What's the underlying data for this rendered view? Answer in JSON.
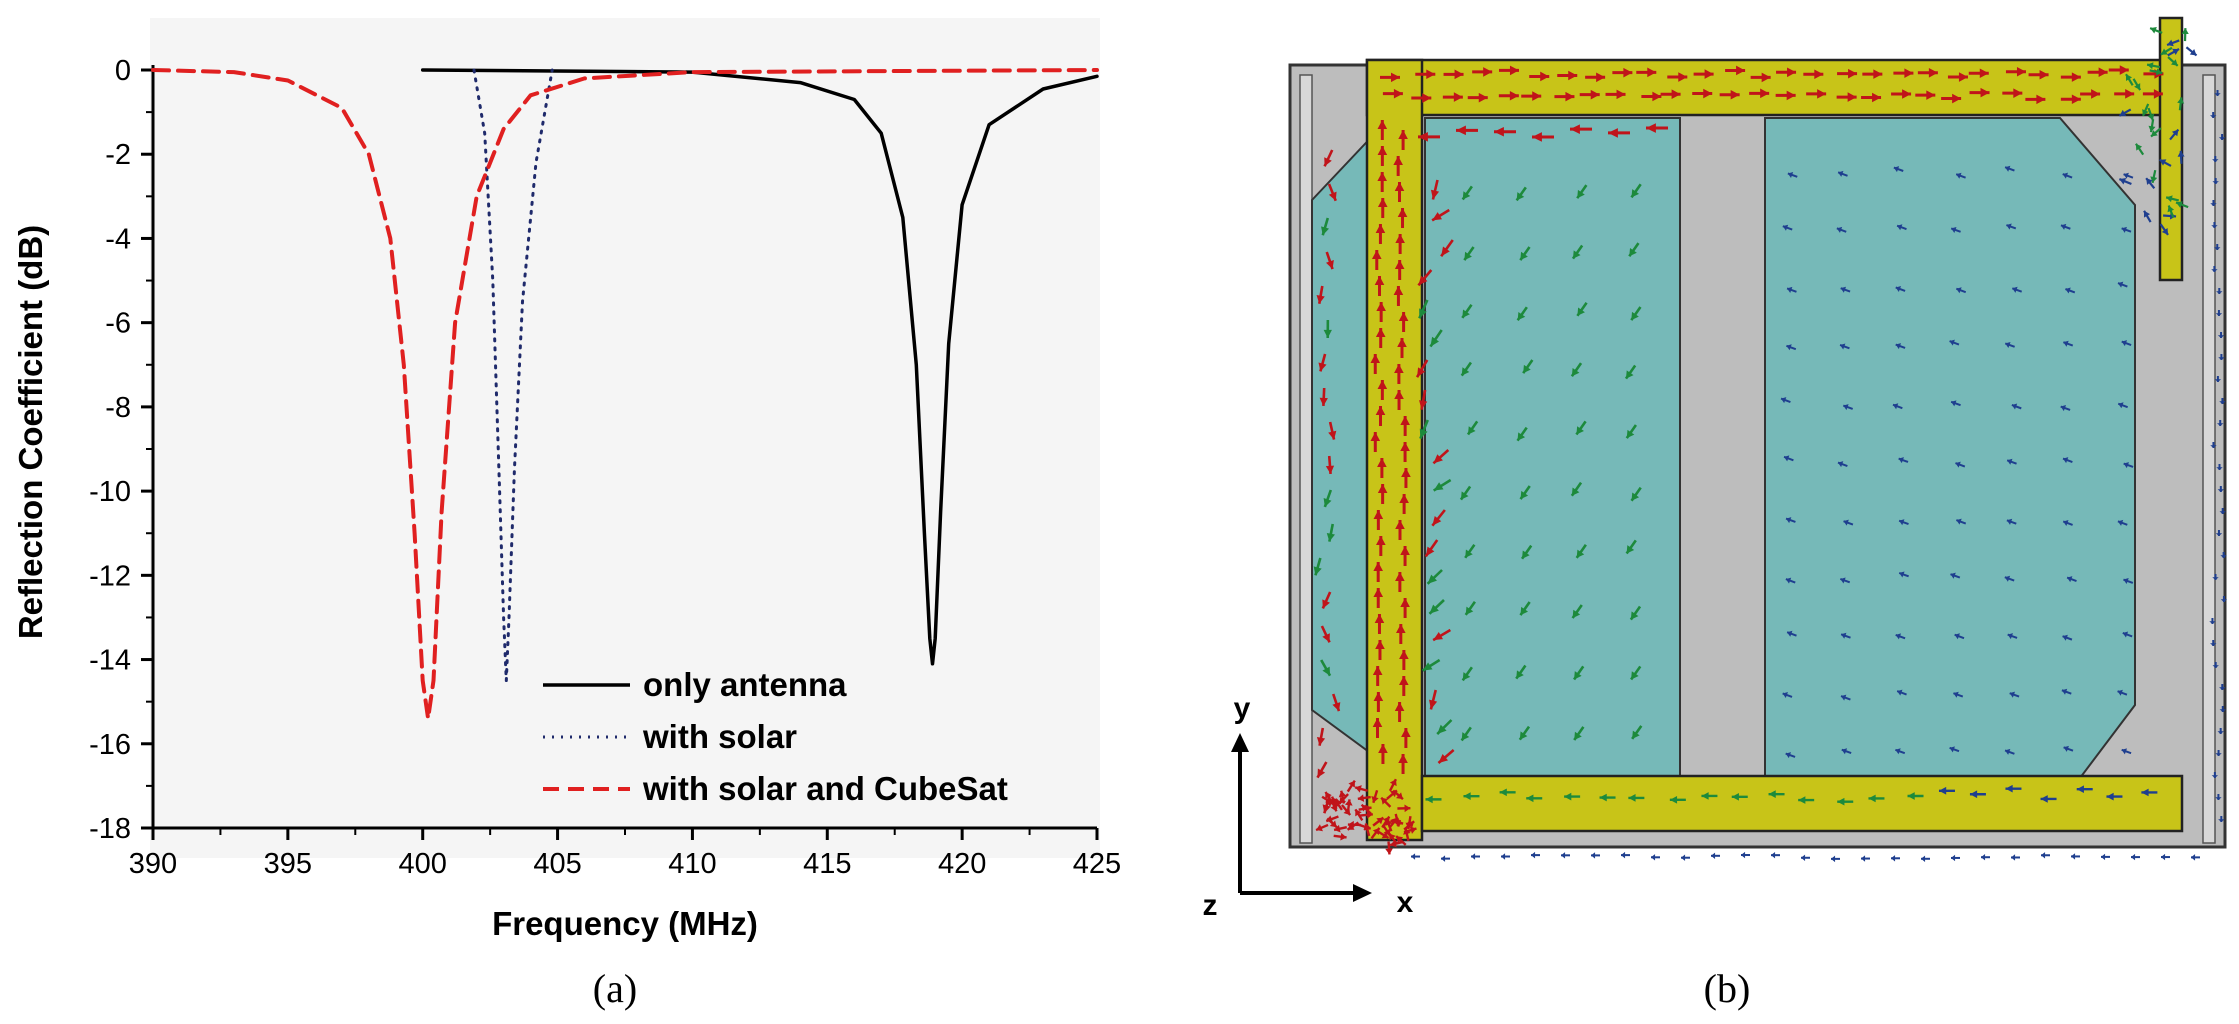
{
  "chart_data": {
    "type": "line",
    "xlabel": "Frequency (MHz)",
    "ylabel": "Reflection Coefficient (dB)",
    "xlim": [
      390,
      425
    ],
    "ylim": [
      -18,
      0
    ],
    "xticks": [
      "390",
      "395",
      "400",
      "405",
      "410",
      "415",
      "420",
      "425"
    ],
    "yticks": [
      "0",
      "-2",
      "-4",
      "-6",
      "-8",
      "-10",
      "-12",
      "-14",
      "-16",
      "-18"
    ],
    "grid": false,
    "legend_position": "bottom-right",
    "series": [
      {
        "name": "only antenna",
        "style": "solid",
        "color": "#000000",
        "x": [
          400,
          410,
          414,
          416,
          417,
          417.8,
          418.3,
          418.6,
          418.8,
          418.9,
          419.0,
          419.2,
          419.5,
          420,
          421,
          423,
          425
        ],
        "y": [
          0,
          -0.05,
          -0.3,
          -0.7,
          -1.5,
          -3.5,
          -7,
          -11,
          -13.5,
          -14.1,
          -13.5,
          -10.5,
          -6.5,
          -3.2,
          -1.3,
          -0.45,
          -0.15
        ]
      },
      {
        "name": "with solar",
        "style": "dotted",
        "color": "#1f2a6b",
        "x": [
          401.9,
          402.3,
          402.6,
          402.85,
          403.0,
          403.1,
          403.2,
          403.4,
          403.7,
          404.2,
          404.8
        ],
        "y": [
          0,
          -1.5,
          -5,
          -10,
          -13,
          -14.5,
          -13,
          -9.5,
          -5.5,
          -2.2,
          0
        ]
      },
      {
        "name": "with solar and CubeSat",
        "style": "dashed",
        "color": "#e02020",
        "x": [
          390,
          393,
          395,
          397,
          398,
          398.8,
          399.3,
          399.7,
          400.0,
          400.2,
          400.4,
          400.7,
          401.2,
          402,
          403,
          404,
          406,
          410,
          425
        ],
        "y": [
          0,
          -0.05,
          -0.25,
          -0.9,
          -2,
          -4,
          -7,
          -11,
          -14.5,
          -15.4,
          -14.5,
          -10.5,
          -6,
          -3,
          -1.4,
          -0.6,
          -0.2,
          -0.05,
          0
        ]
      }
    ]
  },
  "captions": {
    "left": "(a)",
    "right": "(b)"
  },
  "simulation": {
    "axis_labels": {
      "y": "y",
      "z": "z",
      "x": "x"
    }
  },
  "colors": {
    "frame_yellow": "#c8c418",
    "panel_teal": "#76b9b8",
    "substrate_gray": "#bdbdbd",
    "arrow_red": "#c0141a",
    "arrow_green": "#1d8a3c",
    "arrow_blue": "#1f3f8f"
  }
}
